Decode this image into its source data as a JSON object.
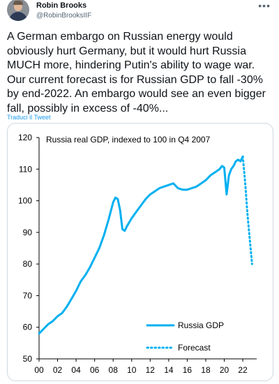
{
  "tweet": {
    "author_name": "Robin Brooks",
    "author_handle": "@RobinBrooksIIF",
    "more_icon": "more-horizontal-icon",
    "text": "A German embargo on Russian energy would obviously hurt Germany, but it would hurt Russia MUCH more, hindering Putin's ability to wage war. Our current forecast is for Russian GDP to fall -30% by end-2022. An embargo would see an even bigger fall, possibly in excess of -40%...",
    "translate_label": "Traduci il Tweet"
  },
  "colors": {
    "line": "#00b0f0",
    "link": "#1d9bf0",
    "text": "#0f1419",
    "muted": "#536471"
  },
  "chart_data": {
    "type": "line",
    "title": "Russia real GDP, indexed to 100 in Q4 2007",
    "xlabel": "",
    "ylabel": "",
    "xlim": [
      2000,
      2023.5
    ],
    "ylim": [
      50,
      120
    ],
    "y_ticks": [
      50,
      60,
      70,
      80,
      90,
      100,
      110,
      120
    ],
    "x_ticks": [
      2000,
      2002,
      2004,
      2006,
      2008,
      2010,
      2012,
      2014,
      2016,
      2018,
      2020,
      2022
    ],
    "x_tick_labels": [
      "00",
      "02",
      "04",
      "06",
      "08",
      "10",
      "12",
      "14",
      "16",
      "18",
      "20",
      "22"
    ],
    "legend_position": "bottom-right",
    "series": [
      {
        "name": "Russia GDP",
        "style": "solid",
        "x": [
          2000.0,
          2000.5,
          2001.0,
          2001.5,
          2002.0,
          2002.5,
          2003.0,
          2003.5,
          2004.0,
          2004.5,
          2005.0,
          2005.5,
          2006.0,
          2006.5,
          2007.0,
          2007.5,
          2008.0,
          2008.25,
          2008.5,
          2008.75,
          2009.0,
          2009.25,
          2009.5,
          2010.0,
          2010.5,
          2011.0,
          2011.5,
          2012.0,
          2012.5,
          2013.0,
          2013.5,
          2014.0,
          2014.5,
          2015.0,
          2015.5,
          2016.0,
          2016.5,
          2017.0,
          2017.5,
          2018.0,
          2018.5,
          2019.0,
          2019.5,
          2019.75,
          2020.0,
          2020.25,
          2020.5,
          2020.75,
          2021.0,
          2021.25,
          2021.5,
          2021.75,
          2022.0
        ],
        "values": [
          58,
          59.5,
          61,
          62,
          63.5,
          64.5,
          66.5,
          69,
          71.5,
          74.5,
          76.5,
          79,
          82,
          85,
          89,
          94,
          99.5,
          101,
          100.5,
          97,
          91,
          90.5,
          92,
          94.5,
          96.5,
          98.5,
          100.5,
          102,
          103,
          104,
          104.5,
          105,
          105.5,
          104,
          103.5,
          103.5,
          104,
          104.5,
          105.5,
          106.5,
          108,
          109,
          110,
          111,
          110.5,
          102,
          108,
          110,
          111,
          112.5,
          113,
          112.5,
          114
        ]
      },
      {
        "name": "Forecast",
        "style": "dotted",
        "x": [
          2022.0,
          2022.25,
          2022.5,
          2022.75,
          2023.0
        ],
        "values": [
          114,
          106,
          96,
          88,
          80
        ]
      }
    ]
  }
}
